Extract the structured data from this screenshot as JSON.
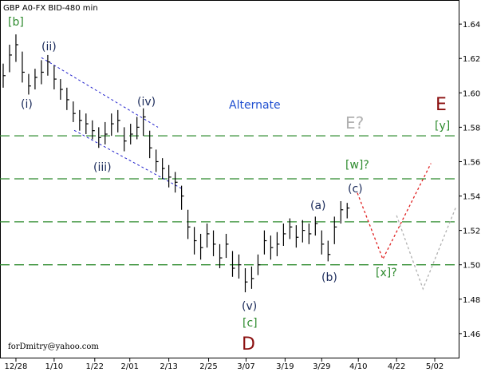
{
  "chart_data": {
    "type": "ohlc",
    "title": "GBP A0-FX BID-480 min",
    "footer": "forDmitry@yahoo.com",
    "color": "#000000",
    "xlim": [
      0,
      144
    ],
    "ylim": [
      1.446,
      1.654
    ],
    "yticks": [
      1.46,
      1.48,
      {
        "value": 1.5,
        "label": "1.50"
      },
      1.52,
      1.54,
      1.56,
      1.58,
      {
        "value": 1.6,
        "label": "1.60"
      },
      1.62,
      1.64
    ],
    "xticks": [
      {
        "value": 5,
        "label": "12/28"
      },
      {
        "value": 17,
        "label": "1/10"
      },
      {
        "value": 29.75,
        "label": "1/22"
      },
      {
        "value": 40.75,
        "label": "2/01"
      },
      {
        "value": 53,
        "label": "2/13"
      },
      {
        "value": 65.5,
        "label": "2/25"
      },
      {
        "value": 77.25,
        "label": "3/07"
      },
      {
        "value": 89.5,
        "label": "3/19"
      },
      {
        "value": 101,
        "label": "3/29"
      },
      {
        "value": 112.5,
        "label": "4/10"
      },
      {
        "value": 124.5,
        "label": "4/22"
      },
      {
        "value": 136.5,
        "label": "5/02"
      }
    ],
    "x": [
      1,
      3,
      5,
      7,
      9,
      11,
      13,
      15,
      17,
      19,
      21,
      23,
      25,
      27,
      29,
      31,
      33,
      35,
      37,
      39,
      41,
      43,
      45,
      47,
      49,
      51,
      53,
      55,
      57,
      59,
      61,
      63,
      65,
      67,
      69,
      71,
      73,
      75,
      77,
      79,
      81,
      83,
      85,
      87,
      89,
      91,
      93,
      95,
      97,
      99,
      101,
      103,
      105,
      107,
      109
    ],
    "high": [
      1.617,
      1.628,
      1.634,
      1.624,
      1.611,
      1.614,
      1.619,
      1.622,
      1.616,
      1.608,
      1.603,
      1.595,
      1.59,
      1.588,
      1.584,
      1.58,
      1.583,
      1.588,
      1.59,
      1.58,
      1.582,
      1.586,
      1.591,
      1.578,
      1.567,
      1.562,
      1.558,
      1.554,
      1.546,
      1.532,
      1.522,
      1.518,
      1.524,
      1.52,
      1.512,
      1.518,
      1.508,
      1.506,
      1.498,
      1.499,
      1.506,
      1.52,
      1.517,
      1.519,
      1.524,
      1.527,
      1.523,
      1.526,
      1.524,
      1.528,
      1.52,
      1.514,
      1.528,
      1.537,
      1.536
    ],
    "low": [
      1.603,
      1.612,
      1.618,
      1.606,
      1.599,
      1.602,
      1.605,
      1.61,
      1.602,
      1.596,
      1.59,
      1.583,
      1.578,
      1.576,
      1.573,
      1.568,
      1.57,
      1.575,
      1.577,
      1.566,
      1.57,
      1.573,
      1.575,
      1.562,
      1.554,
      1.55,
      1.545,
      1.542,
      1.532,
      1.515,
      1.506,
      1.503,
      1.51,
      1.505,
      1.498,
      1.504,
      1.493,
      1.492,
      1.484,
      1.486,
      1.494,
      1.506,
      1.503,
      1.505,
      1.511,
      1.515,
      1.51,
      1.513,
      1.512,
      1.517,
      1.506,
      1.502,
      1.512,
      1.524,
      1.527
    ],
    "close": [
      1.61,
      1.622,
      1.628,
      1.612,
      1.604,
      1.609,
      1.612,
      1.618,
      1.608,
      1.602,
      1.596,
      1.588,
      1.584,
      1.582,
      1.578,
      1.574,
      1.576,
      1.582,
      1.584,
      1.572,
      1.576,
      1.58,
      1.586,
      1.568,
      1.56,
      1.556,
      1.551,
      1.548,
      1.54,
      1.522,
      1.514,
      1.51,
      1.518,
      1.512,
      1.504,
      1.512,
      1.498,
      1.5,
      1.49,
      1.492,
      1.5,
      1.514,
      1.51,
      1.512,
      1.518,
      1.522,
      1.516,
      1.52,
      1.518,
      1.524,
      1.512,
      1.506,
      1.522,
      1.532,
      1.533
    ],
    "levels": {
      "color": "#2e8b2e",
      "values": [
        1.575,
        1.55,
        1.525,
        1.5
      ]
    },
    "channels": {
      "color": "#2222cc",
      "lines": [
        {
          "x": [
            13,
            49.6
          ],
          "y": [
            1.6205,
            1.58
          ]
        },
        {
          "x": [
            23.3,
            57.1
          ],
          "y": [
            1.5782,
            1.5443
          ]
        }
      ]
    },
    "projections": [
      {
        "color": "#e02020",
        "x": [
          112.2,
          120.2,
          135.3
        ],
        "y": [
          1.5418,
          1.5033,
          1.559
        ]
      },
      {
        "color": "#b0b0b0",
        "x": [
          124.5,
          132.8,
          143.3
        ],
        "y": [
          1.5287,
          1.486,
          1.5343
        ]
      }
    ],
    "annotations": [
      "[b]",
      "(i)",
      "(ii)",
      "(iii)",
      "(iv)",
      "(v)",
      "[c]",
      "D",
      "Alternate",
      "E?",
      "E",
      "[y]",
      "[w]?",
      "(c)",
      "(a)",
      "(b)",
      "[x]?"
    ]
  }
}
